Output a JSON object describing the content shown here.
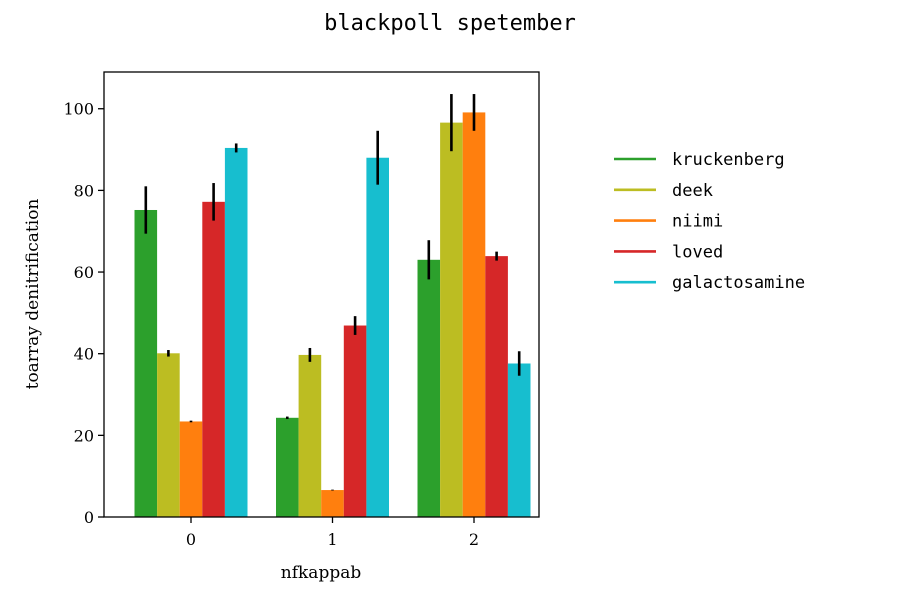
{
  "chart_data": {
    "type": "bar",
    "title": "blackpoll spetember",
    "xlabel": "nfkappab",
    "ylabel": "toarray denitrification",
    "categories": [
      "0",
      "1",
      "2"
    ],
    "ylim": [
      0,
      109
    ],
    "yticks": [
      0,
      20,
      40,
      60,
      80,
      100
    ],
    "grid": false,
    "legend_position": "outside-right",
    "series": [
      {
        "name": "kruckenberg",
        "color": "#2ca02c",
        "values": [
          75.2,
          24.3,
          63.0
        ],
        "errors": [
          5.8,
          0.3,
          4.8
        ]
      },
      {
        "name": "deek",
        "color": "#bcbd22",
        "values": [
          40.1,
          39.7,
          96.6
        ],
        "errors": [
          0.8,
          1.7,
          7.0
        ]
      },
      {
        "name": "niimi",
        "color": "#ff7f0e",
        "values": [
          23.4,
          6.6,
          99.1
        ],
        "errors": [
          0.2,
          0.1,
          4.5
        ]
      },
      {
        "name": "loved",
        "color": "#d62728",
        "values": [
          77.2,
          46.9,
          63.9
        ],
        "errors": [
          4.6,
          2.3,
          1.1
        ]
      },
      {
        "name": "galactosamine",
        "color": "#17becf",
        "values": [
          90.4,
          88.0,
          37.6
        ],
        "errors": [
          1.1,
          6.6,
          3.0
        ]
      }
    ]
  }
}
